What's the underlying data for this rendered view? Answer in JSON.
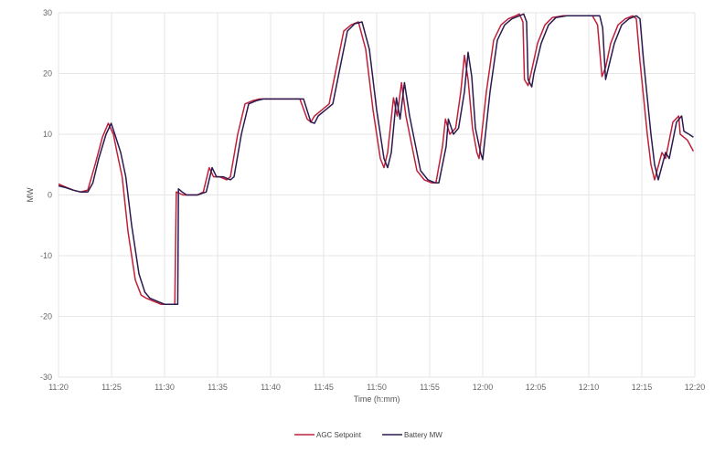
{
  "chart_data": {
    "type": "line",
    "xlabel": "Time (h:mm)",
    "ylabel": "MW",
    "ylim": [
      -30,
      30
    ],
    "yticks": [
      30,
      20,
      10,
      0,
      -10,
      -20,
      -30
    ],
    "xticks": [
      "11:20",
      "11:25",
      "11:30",
      "11:35",
      "11:40",
      "11:45",
      "11:50",
      "11:55",
      "12:00",
      "12:05",
      "12:10",
      "12:15",
      "12:20"
    ],
    "xlim_minutes": [
      0,
      60
    ],
    "grid": true,
    "legend_position": "bottom",
    "series": [
      {
        "name": "AGC Setpoint",
        "color": "#c0203a",
        "points": [
          [
            0,
            1.8
          ],
          [
            1,
            1.3
          ],
          [
            2,
            0.8
          ],
          [
            3,
            0.5
          ],
          [
            4,
            0.8
          ],
          [
            5,
            5
          ],
          [
            6,
            9.5
          ],
          [
            6.8,
            11.8
          ],
          [
            7.5,
            10
          ],
          [
            8,
            7
          ],
          [
            8.7,
            3
          ],
          [
            9.5,
            -6
          ],
          [
            10.5,
            -14
          ],
          [
            11.3,
            -16.5
          ],
          [
            12,
            -17
          ],
          [
            13,
            -17.5
          ],
          [
            14,
            -18
          ],
          [
            15,
            -18
          ],
          [
            15.9,
            -18
          ],
          [
            16.1,
            0.5
          ],
          [
            16.5,
            0.3
          ],
          [
            17,
            0
          ],
          [
            18,
            0
          ],
          [
            19,
            0
          ],
          [
            19.8,
            0.5
          ],
          [
            20.6,
            4.5
          ],
          [
            21.2,
            3
          ],
          [
            22,
            3
          ],
          [
            23,
            2.5
          ],
          [
            23.5,
            3
          ],
          [
            24.5,
            10
          ],
          [
            25.5,
            15
          ],
          [
            26.5,
            15.5
          ],
          [
            27.5,
            15.8
          ],
          [
            30,
            15.8
          ],
          [
            33,
            15.8
          ],
          [
            34,
            12.5
          ],
          [
            34.5,
            12
          ],
          [
            35,
            13
          ],
          [
            36,
            14
          ],
          [
            37,
            15
          ],
          [
            38,
            21
          ],
          [
            39,
            27
          ],
          [
            40,
            28
          ],
          [
            41,
            28.5
          ],
          [
            42,
            24
          ],
          [
            43,
            14
          ],
          [
            44,
            6
          ],
          [
            44.5,
            4.5
          ],
          [
            45,
            7
          ],
          [
            45.8,
            16
          ],
          [
            46.3,
            13
          ],
          [
            46.9,
            18.5
          ],
          [
            47.5,
            13
          ],
          [
            48,
            10
          ],
          [
            49,
            4
          ],
          [
            50,
            2.5
          ],
          [
            51,
            2
          ],
          [
            51.6,
            2
          ],
          [
            52.5,
            8
          ],
          [
            52.9,
            12.5
          ],
          [
            53.5,
            10
          ],
          [
            54.3,
            11
          ],
          [
            55,
            17
          ],
          [
            55.5,
            23
          ],
          [
            56,
            19
          ],
          [
            56.6,
            11
          ],
          [
            57.2,
            7
          ],
          [
            57.5,
            6
          ],
          [
            58.5,
            17
          ],
          [
            59.5,
            25.5
          ],
          [
            60.5,
            28
          ],
          [
            61.5,
            29
          ],
          [
            62.5,
            29.5
          ],
          [
            63,
            29.8
          ],
          [
            63.5,
            28.5
          ],
          [
            63.7,
            19
          ],
          [
            64.2,
            18
          ],
          [
            64.6,
            20
          ],
          [
            65.5,
            25
          ],
          [
            66.5,
            28
          ],
          [
            67.5,
            29.2
          ],
          [
            69,
            29.5
          ],
          [
            71,
            29.5
          ],
          [
            73,
            29.5
          ],
          [
            73.7,
            28
          ],
          [
            74.3,
            19.5
          ],
          [
            74.8,
            21
          ],
          [
            75.5,
            25
          ],
          [
            76.5,
            28
          ],
          [
            77.5,
            29
          ],
          [
            78.5,
            29.5
          ],
          [
            79,
            29
          ],
          [
            79.5,
            22
          ],
          [
            80.5,
            10
          ],
          [
            81,
            5
          ],
          [
            81.5,
            2.5
          ],
          [
            82.5,
            7
          ],
          [
            83,
            6
          ],
          [
            84,
            12
          ],
          [
            84.8,
            13
          ],
          [
            85,
            10
          ],
          [
            86,
            9
          ],
          [
            86.8,
            7.2
          ]
        ]
      },
      {
        "name": "Battery MW",
        "color": "#2b1a4e",
        "points": [
          [
            0,
            1.5
          ],
          [
            1,
            1.2
          ],
          [
            2,
            0.8
          ],
          [
            3,
            0.5
          ],
          [
            4,
            0.5
          ],
          [
            4.7,
            2
          ],
          [
            5.5,
            6
          ],
          [
            6.5,
            10
          ],
          [
            7.2,
            11.8
          ],
          [
            7.7,
            10
          ],
          [
            8.5,
            7
          ],
          [
            9.2,
            3
          ],
          [
            10,
            -5
          ],
          [
            11,
            -13
          ],
          [
            11.8,
            -16
          ],
          [
            12.5,
            -17
          ],
          [
            13.5,
            -17.5
          ],
          [
            14.5,
            -18
          ],
          [
            16,
            -18
          ],
          [
            16.3,
            -18
          ],
          [
            16.4,
            1
          ],
          [
            16.9,
            0.5
          ],
          [
            17.5,
            0
          ],
          [
            19,
            0
          ],
          [
            20.2,
            0.5
          ],
          [
            21,
            4.5
          ],
          [
            21.6,
            3
          ],
          [
            22.5,
            3
          ],
          [
            23.5,
            2.5
          ],
          [
            24,
            3
          ],
          [
            25,
            10
          ],
          [
            26,
            15
          ],
          [
            27,
            15.5
          ],
          [
            28,
            15.8
          ],
          [
            30,
            15.8
          ],
          [
            33.5,
            15.8
          ],
          [
            34.5,
            12
          ],
          [
            35,
            11.8
          ],
          [
            35.5,
            13
          ],
          [
            36.5,
            14
          ],
          [
            37.5,
            15
          ],
          [
            38.5,
            21
          ],
          [
            39.5,
            27
          ],
          [
            40.5,
            28.2
          ],
          [
            41.5,
            28.5
          ],
          [
            42.5,
            24
          ],
          [
            43.5,
            14
          ],
          [
            44.5,
            6
          ],
          [
            45,
            4.5
          ],
          [
            45.5,
            7
          ],
          [
            46.2,
            16
          ],
          [
            46.7,
            12.5
          ],
          [
            47.3,
            18.5
          ],
          [
            48,
            13
          ],
          [
            48.5,
            10
          ],
          [
            49.5,
            4
          ],
          [
            50.5,
            2.5
          ],
          [
            51.5,
            2
          ],
          [
            52,
            2
          ],
          [
            53,
            8
          ],
          [
            53.3,
            12.5
          ],
          [
            54,
            10
          ],
          [
            54.7,
            11
          ],
          [
            55.5,
            17
          ],
          [
            56,
            23.5
          ],
          [
            56.5,
            19.5
          ],
          [
            57,
            11
          ],
          [
            57.7,
            7
          ],
          [
            58,
            5.8
          ],
          [
            59,
            17
          ],
          [
            60,
            25.5
          ],
          [
            61,
            28
          ],
          [
            62,
            29
          ],
          [
            63,
            29.5
          ],
          [
            63.6,
            29.8
          ],
          [
            64,
            28.5
          ],
          [
            64.2,
            19
          ],
          [
            64.7,
            17.8
          ],
          [
            65,
            20
          ],
          [
            66,
            25
          ],
          [
            67,
            28
          ],
          [
            68,
            29.2
          ],
          [
            69.5,
            29.5
          ],
          [
            71.5,
            29.5
          ],
          [
            74,
            29.5
          ],
          [
            74.4,
            27.5
          ],
          [
            74.8,
            19
          ],
          [
            75.2,
            21
          ],
          [
            76,
            25
          ],
          [
            77,
            28
          ],
          [
            78,
            29
          ],
          [
            79,
            29.5
          ],
          [
            79.5,
            29
          ],
          [
            80,
            22
          ],
          [
            81,
            10
          ],
          [
            81.5,
            5
          ],
          [
            82,
            2.5
          ],
          [
            83,
            7
          ],
          [
            83.5,
            6
          ],
          [
            84.5,
            12
          ],
          [
            85.2,
            13
          ],
          [
            85.5,
            10.5
          ],
          [
            86.2,
            10
          ],
          [
            86.8,
            9.5
          ]
        ]
      }
    ]
  }
}
